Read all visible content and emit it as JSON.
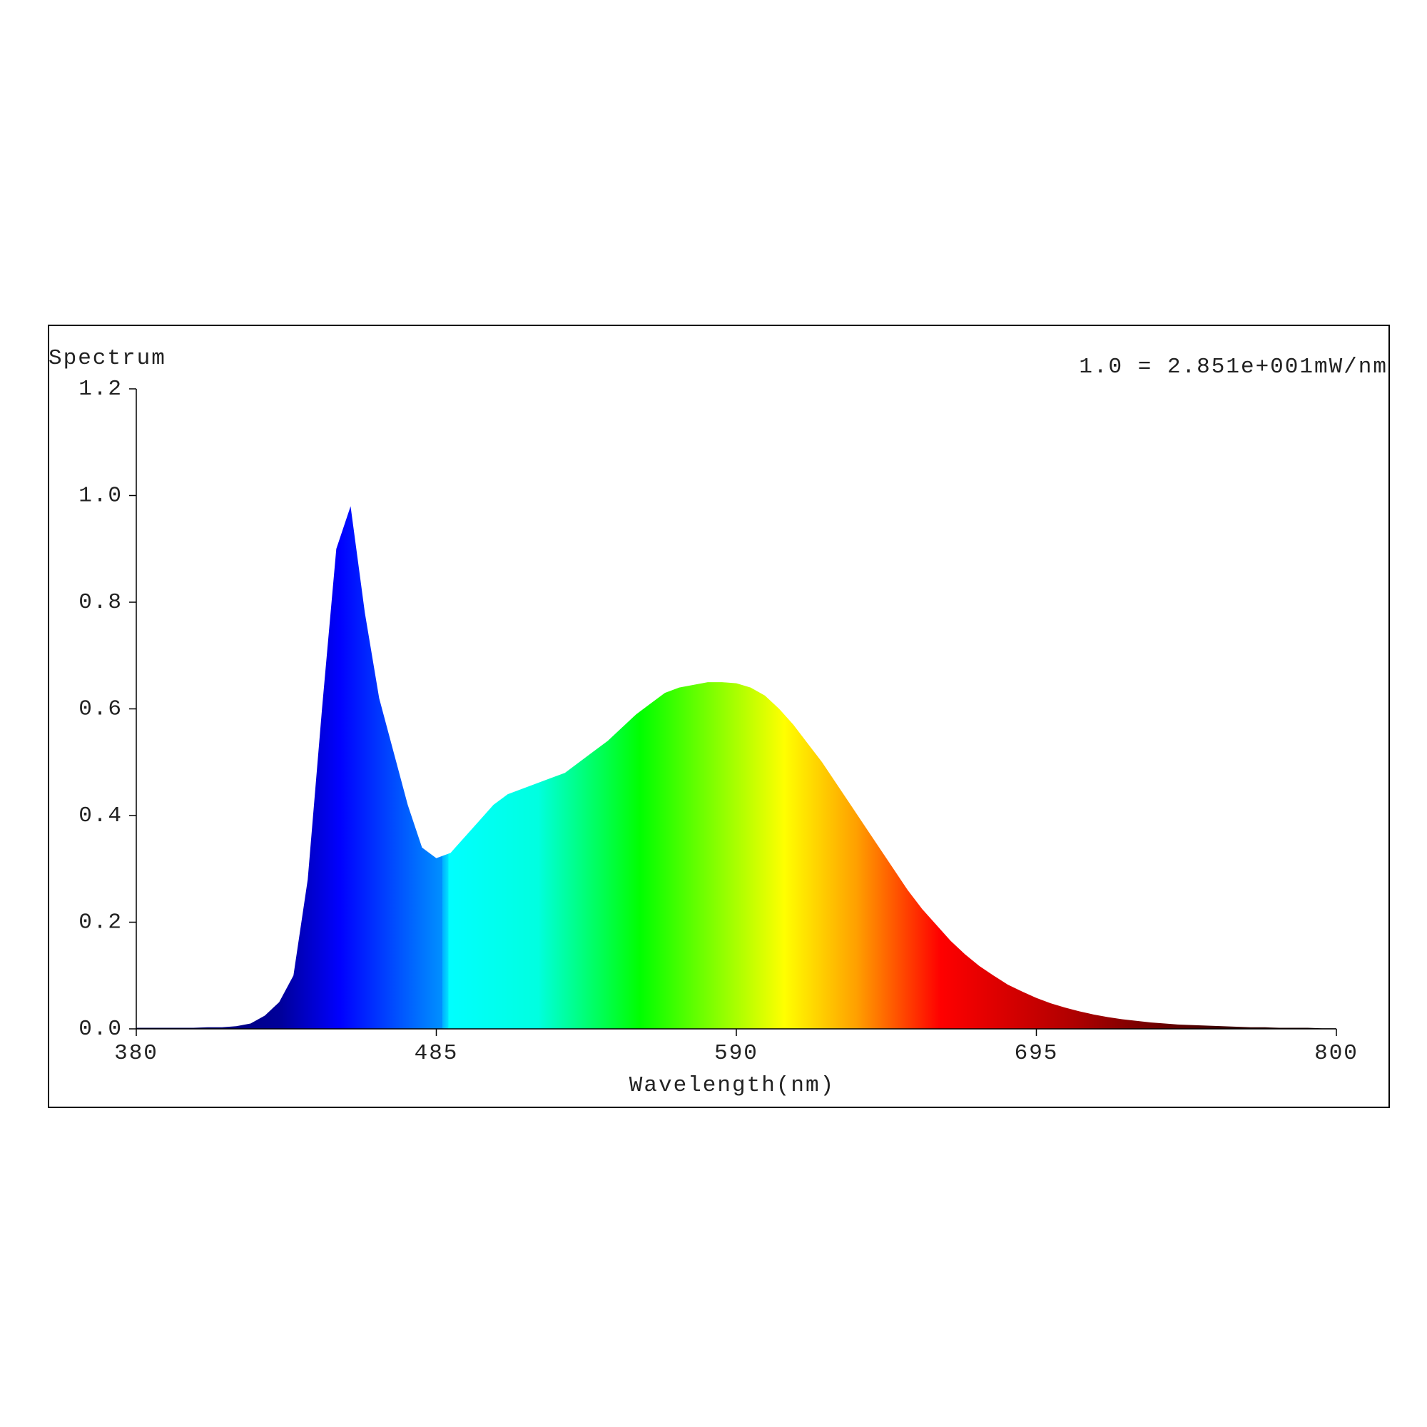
{
  "chart_data": {
    "type": "area",
    "y_label": "Spectrum",
    "annotation": "1.0 = 2.851e+001mW/nm",
    "x_label": "Wavelength(nm)",
    "x": [
      380,
      385,
      390,
      395,
      400,
      405,
      410,
      415,
      420,
      425,
      430,
      435,
      440,
      445,
      450,
      455,
      460,
      465,
      470,
      475,
      480,
      485,
      490,
      495,
      500,
      505,
      510,
      515,
      520,
      525,
      530,
      535,
      540,
      545,
      550,
      555,
      560,
      565,
      570,
      575,
      580,
      585,
      590,
      595,
      600,
      605,
      610,
      615,
      620,
      625,
      630,
      635,
      640,
      645,
      650,
      655,
      660,
      665,
      670,
      675,
      680,
      685,
      690,
      695,
      700,
      705,
      710,
      715,
      720,
      725,
      730,
      735,
      740,
      745,
      750,
      755,
      760,
      765,
      770,
      775,
      780,
      785,
      790,
      795,
      800
    ],
    "values": [
      0.002,
      0.002,
      0.002,
      0.002,
      0.002,
      0.003,
      0.003,
      0.005,
      0.01,
      0.025,
      0.05,
      0.1,
      0.28,
      0.6,
      0.9,
      0.98,
      0.78,
      0.62,
      0.52,
      0.42,
      0.34,
      0.32,
      0.33,
      0.36,
      0.39,
      0.42,
      0.44,
      0.45,
      0.46,
      0.47,
      0.48,
      0.5,
      0.52,
      0.54,
      0.565,
      0.59,
      0.61,
      0.63,
      0.64,
      0.645,
      0.65,
      0.65,
      0.648,
      0.64,
      0.625,
      0.6,
      0.57,
      0.535,
      0.5,
      0.46,
      0.42,
      0.38,
      0.34,
      0.3,
      0.26,
      0.225,
      0.195,
      0.165,
      0.14,
      0.118,
      0.1,
      0.083,
      0.07,
      0.058,
      0.048,
      0.04,
      0.033,
      0.027,
      0.022,
      0.018,
      0.015,
      0.012,
      0.01,
      0.008,
      0.007,
      0.006,
      0.005,
      0.004,
      0.003,
      0.003,
      0.002,
      0.002,
      0.002,
      0.001,
      0.001
    ],
    "xlim": [
      380,
      800
    ],
    "xticks": [
      380,
      485,
      590,
      695,
      800
    ],
    "ylim": [
      0,
      1.2
    ],
    "yticks": [
      {
        "value": 0,
        "label": "0.0"
      },
      0.2,
      0.4,
      0.6,
      0.8,
      {
        "value": 1,
        "label": "1.0"
      },
      1.2
    ],
    "grid": false
  }
}
